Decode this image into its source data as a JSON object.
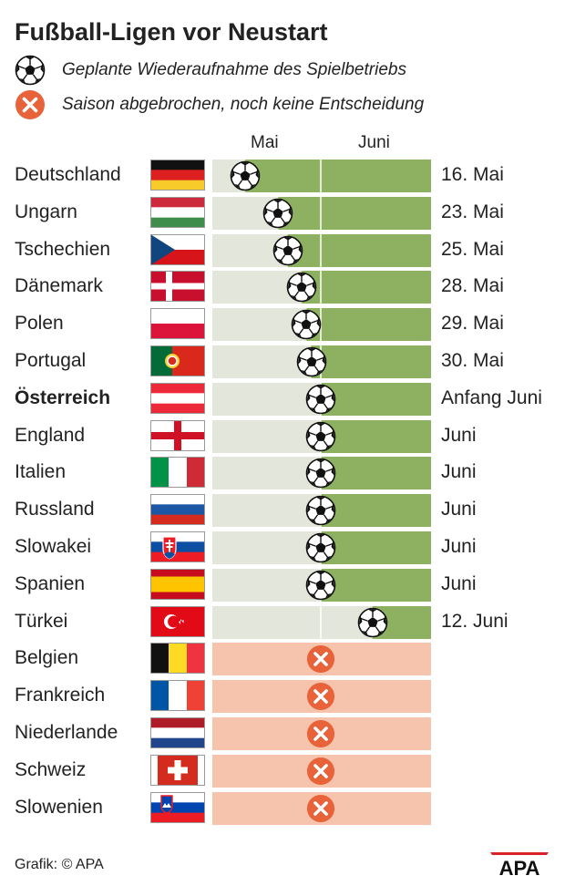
{
  "title": "Fußball-Ligen vor Neustart",
  "legend": {
    "restart_label": "Geplante Wiederaufnahme des Spielbetriebs",
    "cancel_label": "Saison abgebrochen, noch keine Entscheidung"
  },
  "source": "Grafik: © APA",
  "logo_text": "APA",
  "colors": {
    "may_bg": "#e3e6da",
    "june_bg": "#8db161",
    "cancel_bg": "#f6c3ad",
    "cancel_icon": "#e8623a",
    "bar_divider": "#ffffff"
  },
  "chart_data": {
    "type": "timeline",
    "x_axis_labels": [
      "Mai",
      "Juni"
    ],
    "rows": [
      {
        "country": "Deutschland",
        "status": "restart",
        "date_label": "16. Mai",
        "day": 16,
        "month": 5,
        "flag": "de"
      },
      {
        "country": "Ungarn",
        "status": "restart",
        "date_label": "23. Mai",
        "day": 23,
        "month": 5,
        "flag": "hu"
      },
      {
        "country": "Tschechien",
        "status": "restart",
        "date_label": "25. Mai",
        "day": 25,
        "month": 5,
        "flag": "cz"
      },
      {
        "country": "Dänemark",
        "status": "restart",
        "date_label": "28. Mai",
        "day": 28,
        "month": 5,
        "flag": "dk"
      },
      {
        "country": "Polen",
        "status": "restart",
        "date_label": "29. Mai",
        "day": 29,
        "month": 5,
        "flag": "pl"
      },
      {
        "country": "Portugal",
        "status": "restart",
        "date_label": "30. Mai",
        "day": 30,
        "month": 5,
        "flag": "pt"
      },
      {
        "country": "Österreich",
        "status": "restart",
        "date_label": "Anfang Juni",
        "day": 1,
        "month": 6,
        "flag": "at",
        "bold": true
      },
      {
        "country": "England",
        "status": "restart",
        "date_label": "Juni",
        "day": 1,
        "month": 6,
        "flag": "en"
      },
      {
        "country": "Italien",
        "status": "restart",
        "date_label": "Juni",
        "day": 1,
        "month": 6,
        "flag": "it"
      },
      {
        "country": "Russland",
        "status": "restart",
        "date_label": "Juni",
        "day": 1,
        "month": 6,
        "flag": "ru"
      },
      {
        "country": "Slowakei",
        "status": "restart",
        "date_label": "Juni",
        "day": 1,
        "month": 6,
        "flag": "sk"
      },
      {
        "country": "Spanien",
        "status": "restart",
        "date_label": "Juni",
        "day": 1,
        "month": 6,
        "flag": "es"
      },
      {
        "country": "Türkei",
        "status": "restart",
        "date_label": "12. Juni",
        "day": 12,
        "month": 6,
        "flag": "tr"
      },
      {
        "country": "Belgien",
        "status": "cancelled",
        "date_label": "",
        "flag": "be"
      },
      {
        "country": "Frankreich",
        "status": "cancelled",
        "date_label": "",
        "flag": "fr"
      },
      {
        "country": "Niederlande",
        "status": "cancelled",
        "date_label": "",
        "flag": "nl"
      },
      {
        "country": "Schweiz",
        "status": "cancelled",
        "date_label": "",
        "flag": "ch"
      },
      {
        "country": "Slowenien",
        "status": "cancelled",
        "date_label": "",
        "flag": "si"
      }
    ]
  }
}
